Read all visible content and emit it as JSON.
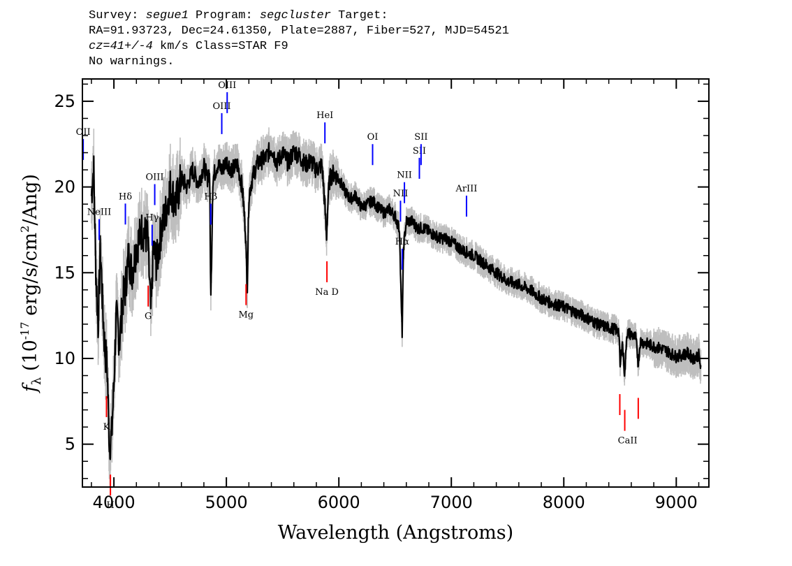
{
  "header": {
    "line1_a": "Survey: ",
    "survey": "segue1",
    "line1_b": " Program: ",
    "program": "segcluster",
    "line1_c": " Target:",
    "line2": "RA=91.93723, Dec=24.61350, Plate=2887, Fiber=527, MJD=54521",
    "cz": "cz=41+/-4",
    "line3_b": " km/s Class=STAR F9",
    "line4": "No warnings."
  },
  "chart_data": {
    "type": "line",
    "xlabel": "Wavelength (Angstroms)",
    "ylabel": "f_λ (10^-17 erg/s/cm^2/Ang)",
    "ylabel_parts": {
      "f": "f",
      "sub": "λ",
      "pre": " (10",
      "exp1": "-17",
      "mid": " erg/s/cm",
      "exp2": "2",
      "post": "/Ang)"
    },
    "xlim": [
      3720,
      9290
    ],
    "ylim": [
      2.5,
      26.3
    ],
    "xticks": [
      4000,
      5000,
      6000,
      7000,
      8000,
      9000
    ],
    "xtick_labels": [
      "4000",
      "5000",
      "6000",
      "7000",
      "8000",
      "9000"
    ],
    "yticks": [
      5,
      10,
      15,
      20,
      25
    ],
    "ytick_labels": [
      "5",
      "10",
      "15",
      "20",
      "25"
    ],
    "series": [
      {
        "role": "flux",
        "color": "#000000",
        "x": [
          3800,
          3820,
          3840,
          3860,
          3880,
          3900,
          3920,
          3940,
          3960,
          3980,
          4000,
          4020,
          4050,
          4080,
          4100,
          4130,
          4160,
          4200,
          4250,
          4300,
          4330,
          4350,
          4380,
          4420,
          4460,
          4500,
          4550,
          4600,
          4650,
          4700,
          4750,
          4800,
          4830,
          4850,
          4862,
          4880,
          4920,
          4960,
          5000,
          5050,
          5100,
          5140,
          5170,
          5185,
          5200,
          5230,
          5270,
          5300,
          5350,
          5400,
          5450,
          5500,
          5550,
          5600,
          5650,
          5700,
          5750,
          5800,
          5850,
          5875,
          5890,
          5905,
          5920,
          5950,
          6000,
          6050,
          6100,
          6150,
          6200,
          6250,
          6300,
          6350,
          6400,
          6450,
          6500,
          6540,
          6555,
          6563,
          6575,
          6600,
          6650,
          6700,
          6750,
          6800,
          6850,
          6900,
          6950,
          7000,
          7100,
          7200,
          7300,
          7400,
          7500,
          7600,
          7700,
          7800,
          7900,
          8000,
          8100,
          8200,
          8300,
          8400,
          8450,
          8490,
          8500,
          8520,
          8542,
          8560,
          8600,
          8640,
          8662,
          8680,
          8720,
          8800,
          8900,
          9000,
          9100,
          9150,
          9200,
          9220
        ],
        "y": [
          19.5,
          21.2,
          15.0,
          12.0,
          16.5,
          13.0,
          10.5,
          9.5,
          5.0,
          5.5,
          8.5,
          12.5,
          11.0,
          13.5,
          14.0,
          16.0,
          15.0,
          16.5,
          17.5,
          17.0,
          12.5,
          16.5,
          15.5,
          17.5,
          18.5,
          20.0,
          19.0,
          20.5,
          20.0,
          21.0,
          20.2,
          21.2,
          20.5,
          21.0,
          13.5,
          20.5,
          21.3,
          21.0,
          21.5,
          21.0,
          21.3,
          20.0,
          17.5,
          14.0,
          19.5,
          20.5,
          21.3,
          21.5,
          21.7,
          22.3,
          21.4,
          22.0,
          21.4,
          22.1,
          21.8,
          21.3,
          21.5,
          21.0,
          21.3,
          19.0,
          17.0,
          19.5,
          20.5,
          20.8,
          20.5,
          19.8,
          19.3,
          19.5,
          18.8,
          19.0,
          19.2,
          18.8,
          18.5,
          18.7,
          18.3,
          17.5,
          13.0,
          11.5,
          16.5,
          18.0,
          18.0,
          17.6,
          17.6,
          17.4,
          17.2,
          17.0,
          17.0,
          16.8,
          16.3,
          16.0,
          15.5,
          15.0,
          14.5,
          14.3,
          14.0,
          13.5,
          13.2,
          13.0,
          12.7,
          12.4,
          12.0,
          11.8,
          11.7,
          11.6,
          9.5,
          11.0,
          9.0,
          11.5,
          11.4,
          11.2,
          9.7,
          11.0,
          10.9,
          10.7,
          10.5,
          10.1,
          10.3,
          10.0,
          10.2,
          9.3
        ]
      }
    ],
    "emission_lines": [
      {
        "label": "OII",
        "wavelength": 3727
      },
      {
        "label": "NeIII",
        "wavelength": 3869
      },
      {
        "label": "Hδ",
        "wavelength": 4102
      },
      {
        "label": "Hγ",
        "wavelength": 4340
      },
      {
        "label": "OIII",
        "wavelength": 4363
      },
      {
        "label": "Hβ",
        "wavelength": 4861
      },
      {
        "label": "OIII",
        "wavelength": 4959
      },
      {
        "label": "OIII",
        "wavelength": 5007
      },
      {
        "label": "HeI",
        "wavelength": 5876
      },
      {
        "label": "OI",
        "wavelength": 6300
      },
      {
        "label": "NII",
        "wavelength": 6548
      },
      {
        "label": "Hα",
        "wavelength": 6563
      },
      {
        "label": "NII",
        "wavelength": 6583
      },
      {
        "label": "SII",
        "wavelength": 6716
      },
      {
        "label": "SII",
        "wavelength": 6731
      },
      {
        "label": "ArIII",
        "wavelength": 7135
      }
    ],
    "absorption_lines": [
      {
        "label": "K",
        "wavelength": 3934
      },
      {
        "label": "H",
        "wavelength": 3969
      },
      {
        "label": "G",
        "wavelength": 4305
      },
      {
        "label": "Mg",
        "wavelength": 5175
      },
      {
        "label": "Na D",
        "wavelength": 5894
      },
      {
        "label": "CaII",
        "wavelength": 8498
      },
      {
        "label": "CaII",
        "wavelength": 8542
      },
      {
        "label": "CaII",
        "wavelength": 8662
      }
    ],
    "colors": {
      "flux": "#000000",
      "error": "#bebebe",
      "emission": "#0000ff",
      "absorption": "#ff0000"
    }
  }
}
